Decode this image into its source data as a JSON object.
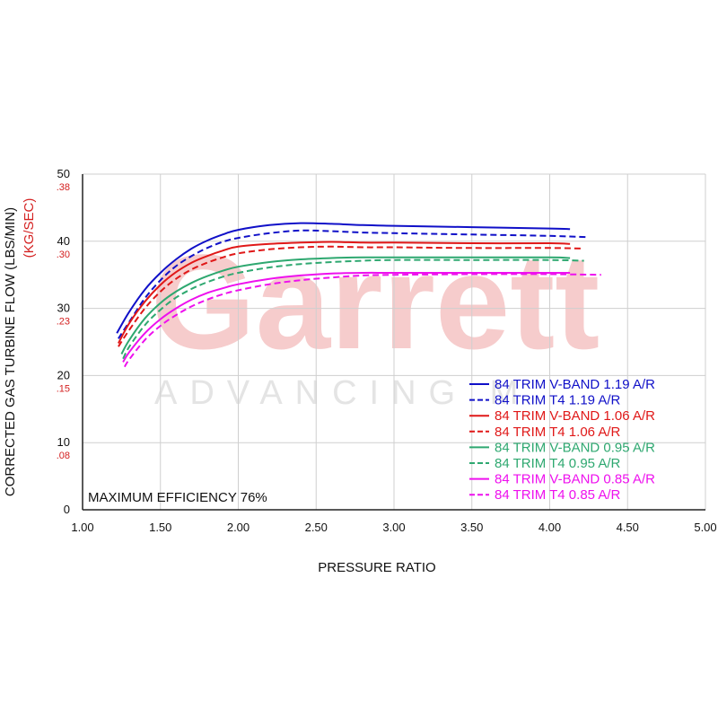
{
  "chart_data": {
    "type": "line",
    "watermark": {
      "brand": "Garrett",
      "tagline": "ADVANCING M"
    },
    "xlabel": "PRESSURE RATIO",
    "ylabel": "CORRECTED GAS TURBINE FLOW (LBS/MIN)",
    "ylabel2": "(KG/SEC)",
    "xlim": [
      1.0,
      5.0
    ],
    "ylim": [
      0,
      50
    ],
    "xticks": [
      "1.00",
      "1.50",
      "2.00",
      "2.50",
      "3.00",
      "3.50",
      "4.00",
      "4.50",
      "5.00"
    ],
    "yticks": [
      {
        "lbs": "0",
        "kg": ""
      },
      {
        "lbs": "10",
        "kg": ".08"
      },
      {
        "lbs": "20",
        "kg": ".15"
      },
      {
        "lbs": "30",
        "kg": ".23"
      },
      {
        "lbs": "40",
        "kg": ".30"
      },
      {
        "lbs": "50",
        "kg": ".38"
      }
    ],
    "annotation": "MAXIMUM EFFICIENCY 76%",
    "grid": true,
    "legend_position": "bottom-right",
    "colors": {
      "blue": "#1010c8",
      "red": "#e01818",
      "green": "#2ea870",
      "magenta": "#ee10ee",
      "kg_axis": "#d42020"
    },
    "series": [
      {
        "name": "84 TRIM V-BAND 1.19 A/R",
        "color": "#1010c8",
        "dash": false,
        "x": [
          1.22,
          1.3,
          1.4,
          1.5,
          1.6,
          1.7,
          1.8,
          1.9,
          2.0,
          2.2,
          2.4,
          2.6,
          2.8,
          3.0,
          3.5,
          4.0,
          4.13
        ],
        "y": [
          26.3,
          29.5,
          32.8,
          35.3,
          37.3,
          38.9,
          40.1,
          41.0,
          41.7,
          42.4,
          42.7,
          42.6,
          42.4,
          42.3,
          42.1,
          41.9,
          41.8
        ]
      },
      {
        "name": "84 TRIM T4 1.19 A/R",
        "color": "#1010c8",
        "dash": true,
        "x": [
          1.23,
          1.3,
          1.4,
          1.5,
          1.6,
          1.7,
          1.8,
          1.9,
          2.0,
          2.2,
          2.4,
          2.6,
          2.8,
          3.0,
          3.5,
          4.0,
          4.25
        ],
        "y": [
          25.5,
          28.0,
          31.5,
          34.2,
          36.3,
          37.8,
          39.0,
          39.9,
          40.5,
          41.2,
          41.6,
          41.5,
          41.3,
          41.2,
          41.0,
          40.8,
          40.6
        ]
      },
      {
        "name": "84 TRIM V-BAND 1.06 A/R",
        "color": "#e01818",
        "dash": false,
        "x": [
          1.23,
          1.3,
          1.4,
          1.5,
          1.6,
          1.7,
          1.8,
          1.9,
          2.0,
          2.2,
          2.4,
          2.6,
          2.8,
          3.0,
          3.5,
          4.0,
          4.13
        ],
        "y": [
          24.8,
          27.8,
          31.0,
          33.5,
          35.4,
          36.8,
          37.8,
          38.6,
          39.2,
          39.6,
          39.8,
          39.9,
          39.8,
          39.8,
          39.7,
          39.7,
          39.6
        ]
      },
      {
        "name": "84 TRIM T4 1.06 A/R",
        "color": "#e01818",
        "dash": true,
        "x": [
          1.23,
          1.3,
          1.4,
          1.5,
          1.6,
          1.7,
          1.8,
          1.9,
          2.0,
          2.2,
          2.4,
          2.6,
          2.8,
          3.0,
          3.5,
          4.0,
          4.22
        ],
        "y": [
          24.3,
          26.8,
          30.0,
          32.5,
          34.4,
          35.8,
          36.8,
          37.6,
          38.2,
          38.8,
          39.1,
          39.2,
          39.1,
          39.1,
          39.0,
          39.0,
          38.9
        ]
      },
      {
        "name": "84 TRIM V-BAND 0.95 A/R",
        "color": "#2ea870",
        "dash": false,
        "x": [
          1.25,
          1.3,
          1.4,
          1.5,
          1.6,
          1.7,
          1.8,
          1.9,
          2.0,
          2.2,
          2.4,
          2.6,
          2.8,
          3.0,
          3.5,
          4.0,
          4.13
        ],
        "y": [
          23.2,
          25.3,
          28.5,
          30.8,
          32.5,
          33.8,
          34.8,
          35.6,
          36.2,
          36.9,
          37.3,
          37.5,
          37.6,
          37.6,
          37.6,
          37.6,
          37.5
        ]
      },
      {
        "name": "84 TRIM T4 0.95 A/R",
        "color": "#2ea870",
        "dash": true,
        "x": [
          1.26,
          1.3,
          1.4,
          1.5,
          1.6,
          1.7,
          1.8,
          1.9,
          2.0,
          2.2,
          2.4,
          2.6,
          2.8,
          3.0,
          3.5,
          4.0,
          4.22
        ],
        "y": [
          22.5,
          24.3,
          27.5,
          29.8,
          31.6,
          32.9,
          33.9,
          34.7,
          35.3,
          36.1,
          36.6,
          36.9,
          37.1,
          37.2,
          37.2,
          37.2,
          37.1
        ]
      },
      {
        "name": "84 TRIM V-BAND 0.85 A/R",
        "color": "#ee10ee",
        "dash": false,
        "x": [
          1.26,
          1.3,
          1.4,
          1.5,
          1.6,
          1.7,
          1.8,
          1.9,
          2.0,
          2.2,
          2.4,
          2.6,
          2.8,
          3.0,
          3.5,
          4.0,
          4.13
        ],
        "y": [
          22.0,
          23.5,
          26.3,
          28.4,
          30.0,
          31.3,
          32.3,
          33.0,
          33.6,
          34.4,
          34.9,
          35.2,
          35.3,
          35.3,
          35.3,
          35.3,
          35.3
        ]
      },
      {
        "name": "84 TRIM T4 0.85 A/R",
        "color": "#ee10ee",
        "dash": true,
        "x": [
          1.27,
          1.3,
          1.4,
          1.5,
          1.6,
          1.7,
          1.8,
          1.9,
          2.0,
          2.2,
          2.4,
          2.6,
          2.8,
          3.0,
          3.5,
          4.0,
          4.33
        ],
        "y": [
          21.3,
          22.4,
          25.3,
          27.4,
          29.0,
          30.3,
          31.3,
          32.1,
          32.7,
          33.6,
          34.2,
          34.6,
          34.9,
          35.0,
          35.1,
          35.1,
          35.0
        ]
      }
    ]
  }
}
